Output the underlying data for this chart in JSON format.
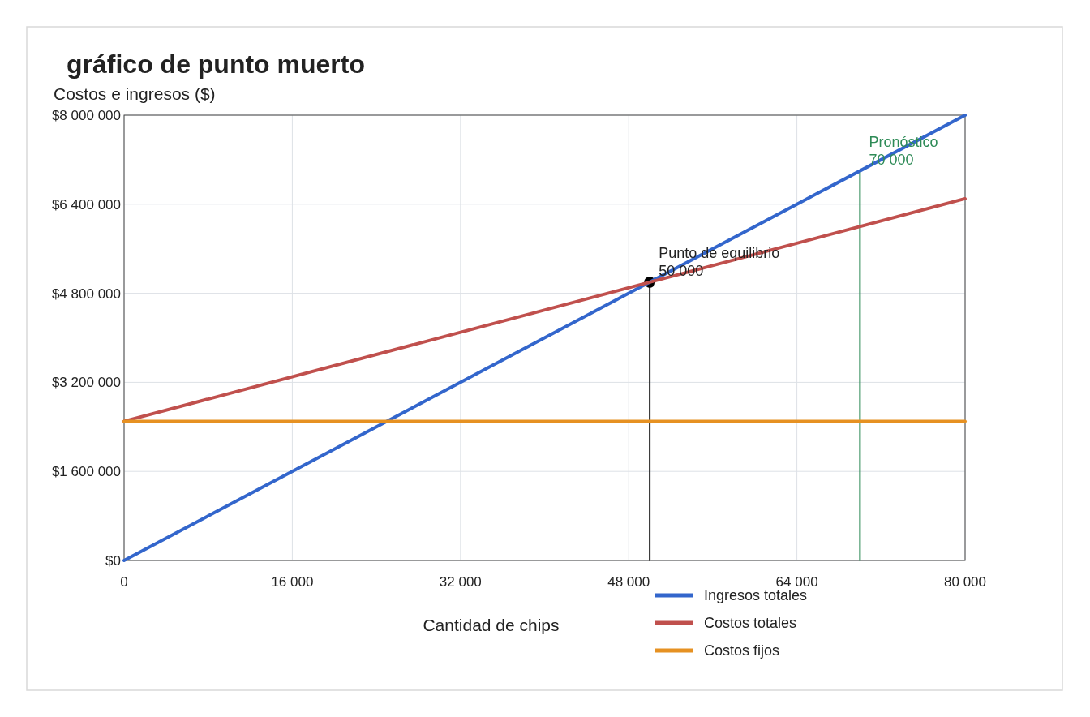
{
  "chart_data": {
    "type": "line",
    "title": "gráfico de punto muerto",
    "xlabel": "Cantidad de chips",
    "ylabel": "Costos e ingresos ($)",
    "xlim": [
      0,
      80000
    ],
    "xticks": [
      {
        "value": 0,
        "label": "0"
      },
      {
        "value": 16000,
        "label": "16 000"
      },
      {
        "value": 32000,
        "label": "32 000"
      },
      {
        "value": 48000,
        "label": "48 000"
      },
      {
        "value": 64000,
        "label": "64 000"
      },
      {
        "value": 80000,
        "label": "80 000"
      }
    ],
    "ylim": [
      0,
      8000000
    ],
    "yticks": [
      {
        "value": 0,
        "label": "$0"
      },
      {
        "value": 1600000,
        "label": "$1 600 000"
      },
      {
        "value": 3200000,
        "label": "$3 200 000"
      },
      {
        "value": 4800000,
        "label": "$4 800 000"
      },
      {
        "value": 6400000,
        "label": "$6 400 000"
      },
      {
        "value": 8000000,
        "label": "$8 000 000"
      }
    ],
    "grid": true,
    "legend": "bottom",
    "series": [
      {
        "name": "Ingresos totales",
        "color": "#3366cc",
        "x": [
          0,
          80000
        ],
        "values": [
          0,
          8000000
        ]
      },
      {
        "name": "Costos totales",
        "color": "#c0504d",
        "x": [
          0,
          80000
        ],
        "values": [
          2500000,
          6500000
        ]
      },
      {
        "name": "Costos fijos",
        "color": "#e69122",
        "x": [
          0,
          80000
        ],
        "values": [
          2500000,
          2500000
        ]
      },
      {
        "color": "#222222",
        "x": [
          50000,
          50000
        ],
        "values": [
          0,
          5000000
        ]
      },
      {
        "color": "#2e8b57",
        "x": [
          70000,
          70000
        ],
        "values": [
          0,
          7000000
        ]
      },
      {
        "type": "scatter",
        "marker": "circle",
        "color": "#000000",
        "x": [
          50000
        ],
        "values": [
          5000000
        ]
      }
    ],
    "annotations": [
      {
        "text": "Punto de equilibrio\n50 000",
        "x": 50000,
        "y": 5000000
      },
      {
        "text": "Pronóstico\n70 000",
        "x": 70000,
        "y": 7000000
      }
    ]
  }
}
